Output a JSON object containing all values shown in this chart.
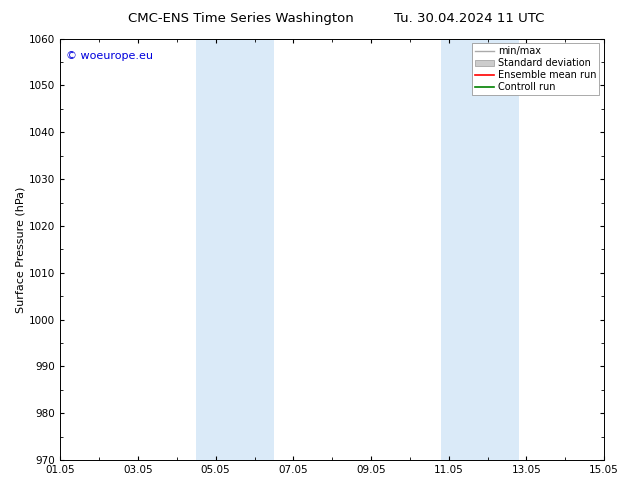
{
  "title_left": "CMC-ENS Time Series Washington",
  "title_right": "Tu. 30.04.2024 11 UTC",
  "ylabel": "Surface Pressure (hPa)",
  "ylim": [
    970,
    1060
  ],
  "yticks": [
    970,
    980,
    990,
    1000,
    1010,
    1020,
    1030,
    1040,
    1050,
    1060
  ],
  "xlim": [
    0,
    14
  ],
  "xtick_labels": [
    "01.05",
    "03.05",
    "05.05",
    "07.05",
    "09.05",
    "11.05",
    "13.05",
    "15.05"
  ],
  "xtick_positions": [
    0,
    2,
    4,
    6,
    8,
    10,
    12,
    14
  ],
  "shaded_bands": [
    {
      "x_start": 3.5,
      "x_end": 5.5,
      "color": "#daeaf8"
    },
    {
      "x_start": 9.8,
      "x_end": 11.8,
      "color": "#daeaf8"
    }
  ],
  "legend_labels": [
    "min/max",
    "Standard deviation",
    "Ensemble mean run",
    "Controll run"
  ],
  "legend_colors_line": [
    "#999999",
    "#cccccc",
    "#ff0000",
    "#008000"
  ],
  "watermark_text": "© woeurope.eu",
  "watermark_color": "#0000dd",
  "background_color": "#ffffff",
  "axes_bg_color": "#ffffff",
  "title_fontsize": 9.5,
  "tick_fontsize": 7.5,
  "ylabel_fontsize": 8,
  "legend_fontsize": 7,
  "watermark_fontsize": 8
}
